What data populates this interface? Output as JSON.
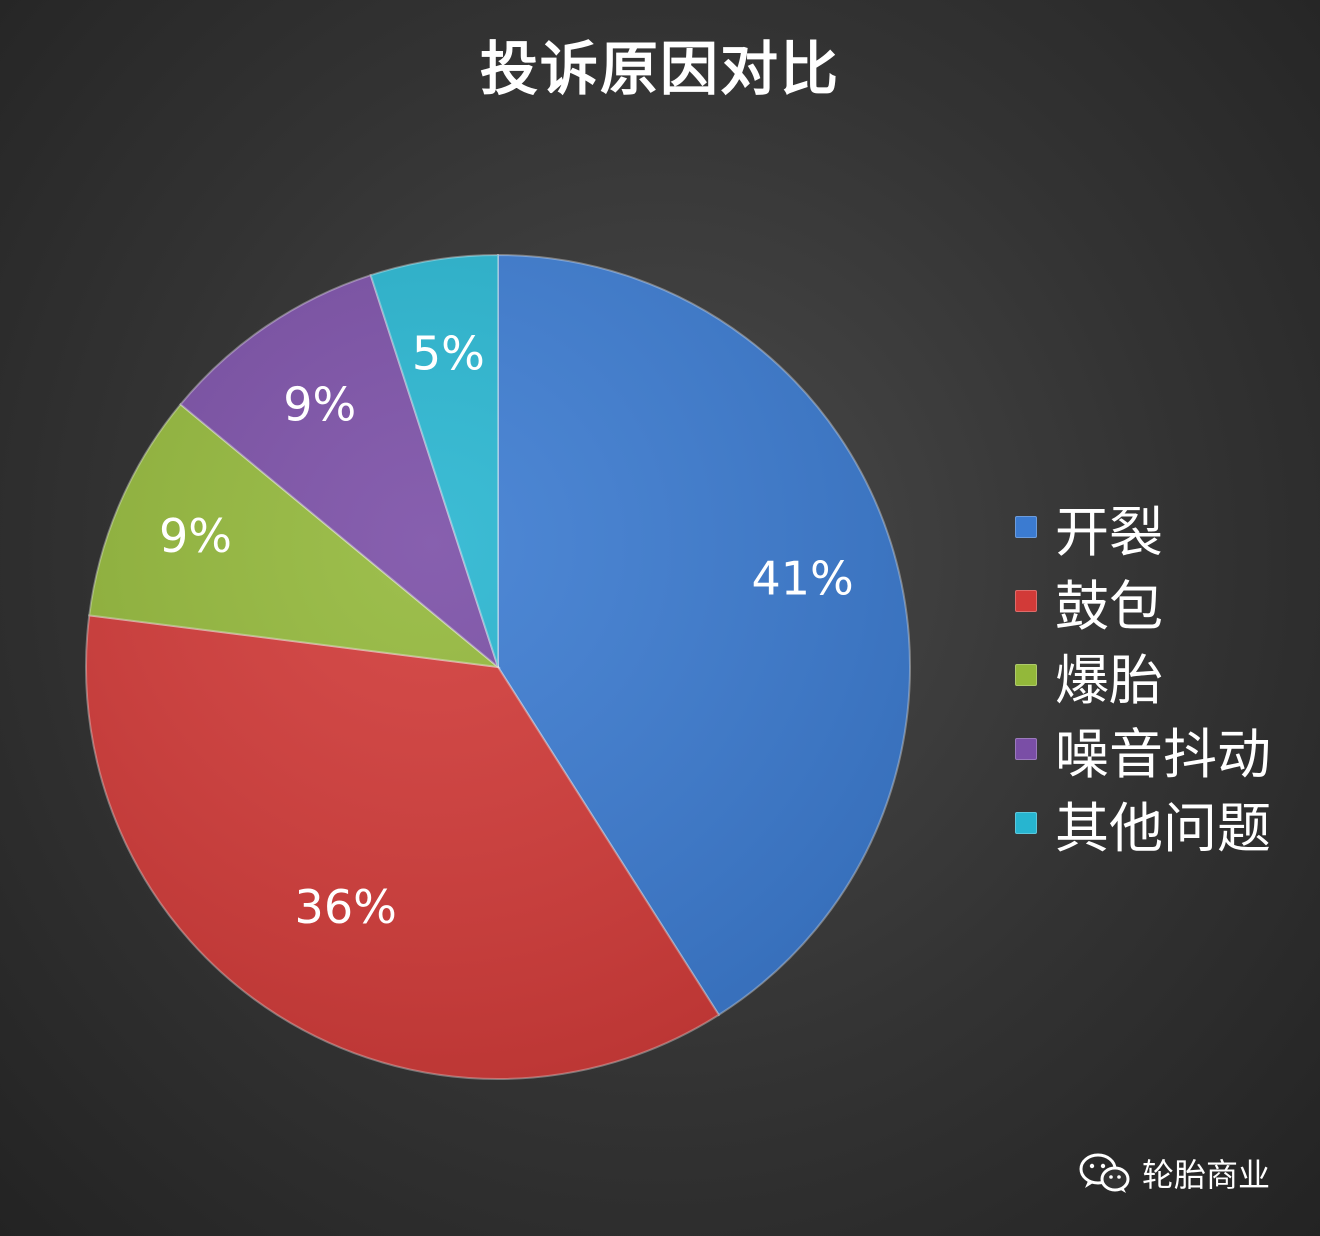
{
  "chart_data": {
    "type": "pie",
    "title": "投诉原因对比",
    "categories": [
      "开裂",
      "鼓包",
      "爆胎",
      "噪音抖动",
      "其他问题"
    ],
    "values": [
      41,
      36,
      9,
      9,
      5
    ],
    "value_labels": [
      "41%",
      "36%",
      "9%",
      "9%",
      "5%"
    ],
    "colors": [
      "#3b7bd1",
      "#d23a38",
      "#93b83a",
      "#7a4ea6",
      "#27b5d0"
    ],
    "legend_position": "right",
    "start": "12 o'clock",
    "direction": "clockwise"
  },
  "watermark": {
    "text": "轮胎商业",
    "icon": "wechat-icon"
  }
}
